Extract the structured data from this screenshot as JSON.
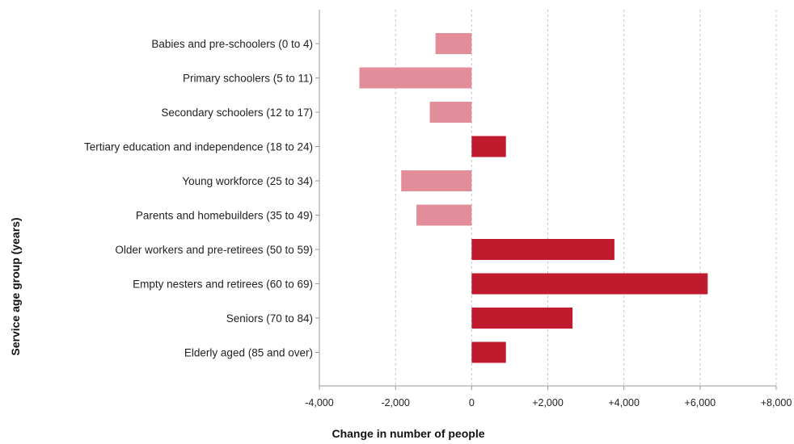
{
  "chart_data": {
    "type": "bar",
    "orientation": "horizontal",
    "title": "",
    "xlabel": "Change in number of people",
    "ylabel": "Service age group (years)",
    "categories": [
      "Babies and pre-schoolers (0 to 4)",
      "Primary schoolers (5 to 11)",
      "Secondary schoolers (12 to 17)",
      "Tertiary education and independence (18 to 24)",
      "Young workforce (25 to 34)",
      "Parents and homebuilders (35 to 49)",
      "Older workers and pre-retirees (50 to 59)",
      "Empty nesters and retirees (60 to 69)",
      "Seniors (70 to 84)",
      "Elderly aged (85 and over)"
    ],
    "values": [
      -950,
      -2950,
      -1100,
      900,
      -1850,
      -1450,
      3750,
      6200,
      2650,
      900
    ],
    "xlim": [
      -4000,
      8000
    ],
    "x_ticks": [
      -4000,
      -2000,
      0,
      2000,
      4000,
      6000,
      8000
    ],
    "x_tick_labels": [
      "-4,000",
      "-2,000",
      "0",
      "+2,000",
      "+4,000",
      "+6,000",
      "+8,000"
    ],
    "grid": true,
    "colors": {
      "negative": "#e38c9a",
      "positive": "#c01a2e",
      "grid": "#c8c8c8",
      "axis": "#999999"
    }
  }
}
